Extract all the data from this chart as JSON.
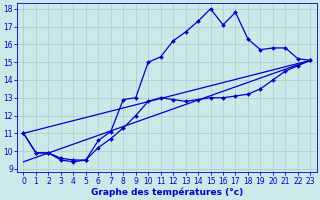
{
  "xlabel": "Graphe des températures (°c)",
  "bg_color": "#cce8e8",
  "grid_color": "#aacccc",
  "line_color": "#0000cc",
  "xmin": -0.5,
  "xmax": 23.5,
  "ymin": 8.8,
  "ymax": 18.3,
  "yticks": [
    9,
    10,
    11,
    12,
    13,
    14,
    15,
    16,
    17,
    18
  ],
  "xticks": [
    0,
    1,
    2,
    3,
    4,
    5,
    6,
    7,
    8,
    9,
    10,
    11,
    12,
    13,
    14,
    15,
    16,
    17,
    18,
    19,
    20,
    21,
    22,
    23
  ],
  "line1_x": [
    0,
    1,
    2,
    3,
    4,
    5,
    6,
    7,
    8,
    9,
    10,
    11,
    12,
    13,
    14,
    15,
    16,
    17,
    18,
    19,
    20,
    21,
    22,
    23
  ],
  "line1_y": [
    11.0,
    9.9,
    9.9,
    9.5,
    9.4,
    9.5,
    10.6,
    11.1,
    12.9,
    13.0,
    15.0,
    15.3,
    16.2,
    16.7,
    17.3,
    18.0,
    17.1,
    17.8,
    16.3,
    15.7,
    15.8,
    15.8,
    15.2,
    15.1
  ],
  "line2_x": [
    0,
    1,
    2,
    3,
    4,
    5,
    6,
    7,
    8,
    9,
    10,
    11,
    12,
    13,
    14,
    15,
    16,
    17,
    18,
    19,
    20,
    21,
    22,
    23
  ],
  "line2_y": [
    11.0,
    9.9,
    9.9,
    9.6,
    9.5,
    9.5,
    10.2,
    10.7,
    11.3,
    12.0,
    12.8,
    13.0,
    12.9,
    12.8,
    12.9,
    13.0,
    13.0,
    13.1,
    13.2,
    13.5,
    14.0,
    14.5,
    14.8,
    15.1
  ],
  "line3_x": [
    0,
    23
  ],
  "line3_y": [
    11.0,
    15.1
  ],
  "line4_x": [
    0,
    23
  ],
  "line4_y": [
    9.4,
    15.1
  ],
  "markersize": 2.0,
  "linewidth": 0.9,
  "tick_fontsize": 5.5,
  "xlabel_fontsize": 6.5
}
